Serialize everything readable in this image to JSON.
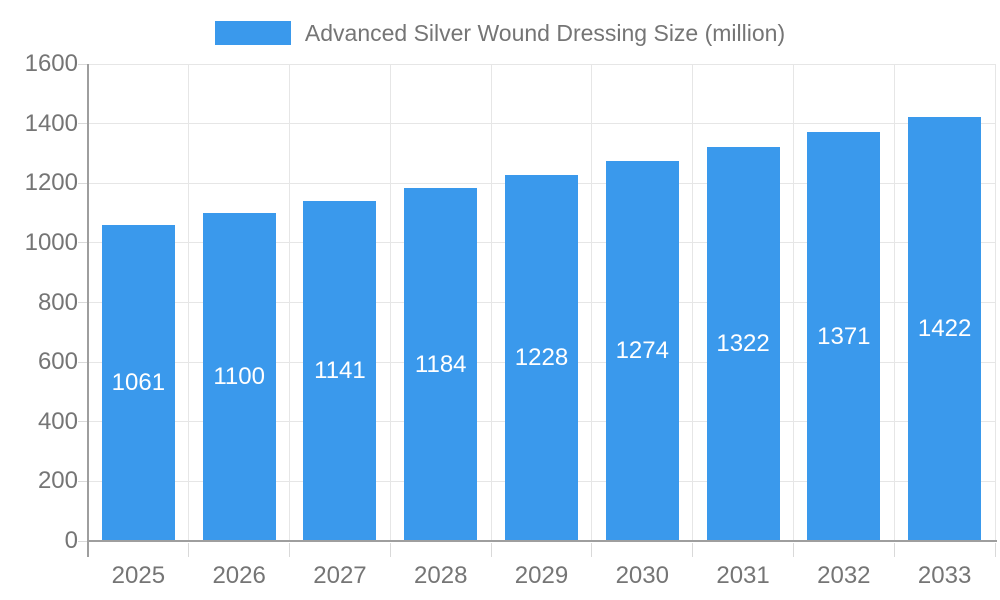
{
  "chart_data": {
    "type": "bar",
    "title": "Advanced Silver Wound Dressing Size (million)",
    "legend": {
      "label": "Advanced Silver Wound Dressing Size (million)",
      "position": "top-center"
    },
    "categories": [
      "2025",
      "2026",
      "2027",
      "2028",
      "2029",
      "2030",
      "2031",
      "2032",
      "2033"
    ],
    "values": [
      1061,
      1100,
      1141,
      1184,
      1228,
      1274,
      1322,
      1371,
      1422
    ],
    "value_labels": [
      "1061",
      "1100",
      "1141",
      "1184",
      "1228",
      "1274",
      "1322",
      "1371",
      "1422"
    ],
    "xlabel": "",
    "ylabel": "",
    "ylim": [
      0,
      1600
    ],
    "ytick_step": 200,
    "ytick_labels": [
      "0",
      "200",
      "400",
      "600",
      "800",
      "1000",
      "1200",
      "1400",
      "1600"
    ],
    "grid": true,
    "colors": {
      "bar": "#3a99ec",
      "bar_label_text": "#ffffff",
      "axis_text": "#757575",
      "axis_line": "#9e9e9e",
      "gridline": "#e6e6e6",
      "tick_mark": "#d9d9d9",
      "background": "#ffffff"
    }
  }
}
